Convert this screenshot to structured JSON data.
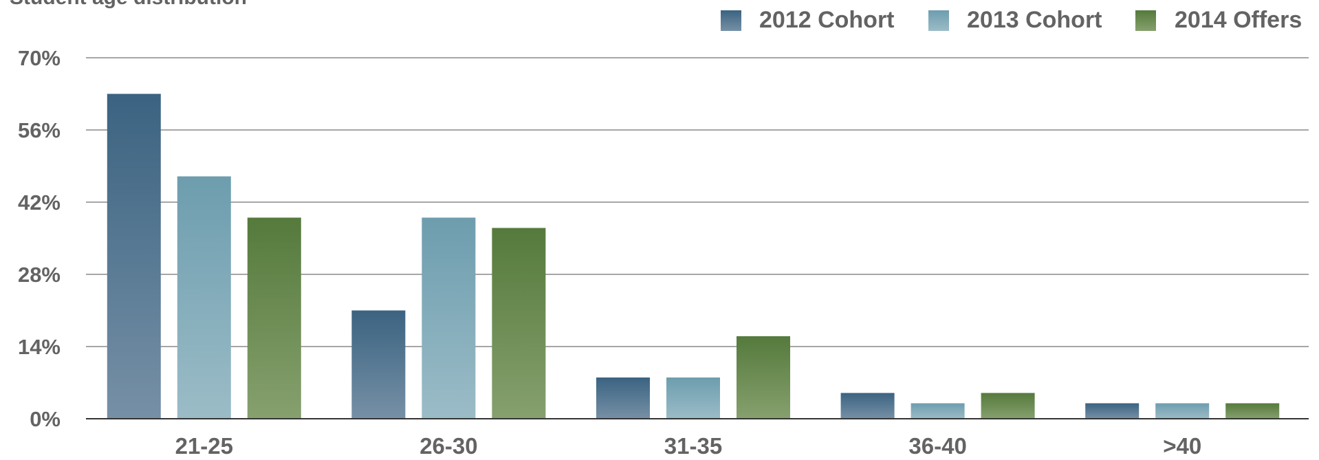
{
  "chart_data": {
    "type": "bar",
    "title": "Student age distribution",
    "xlabel": "",
    "ylabel": "",
    "categories": [
      "21-25",
      "26-30",
      "31-35",
      "36-40",
      ">40"
    ],
    "series": [
      {
        "name": "2012 Cohort",
        "values": [
          63,
          21,
          8,
          5,
          3
        ],
        "color": "#3b6381",
        "color_light": "#7690a6"
      },
      {
        "name": "2013 Cohort",
        "values": [
          47,
          39,
          8,
          3,
          3
        ],
        "color": "#6d9dae",
        "color_light": "#9bbcc7"
      },
      {
        "name": "2014 Offers",
        "values": [
          39,
          37,
          16,
          5,
          3
        ],
        "color": "#557a3c",
        "color_light": "#86a06e"
      }
    ],
    "yticks": [
      "0%",
      "14%",
      "28%",
      "42%",
      "56%",
      "70%"
    ],
    "ytick_values": [
      0,
      14,
      28,
      42,
      56,
      70
    ],
    "ylim": [
      0,
      70
    ],
    "grid": true,
    "legend_position": "top-right",
    "gridline_color": "#a6a6a6",
    "axis_color": "#333333",
    "text_color": "#636363"
  }
}
